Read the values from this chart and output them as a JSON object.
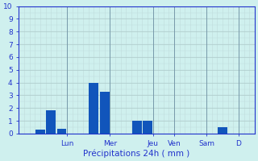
{
  "bar_positions": [
    2,
    3,
    4,
    7,
    8,
    11,
    12,
    19
  ],
  "bar_values": [
    0.3,
    1.8,
    0.4,
    4.0,
    3.3,
    1.0,
    1.0,
    0.5
  ],
  "bar_color": "#1155bb",
  "background_color": "#cff0ee",
  "grid_major_color": "#aac8c8",
  "grid_minor_color": "#c0dcdc",
  "vline_color": "#7799aa",
  "axis_color": "#2233cc",
  "tick_color": "#2233cc",
  "xlabel": "Précipitations 24h ( mm )",
  "xlabel_color": "#2233cc",
  "ylim": [
    0,
    10
  ],
  "yticks": [
    0,
    1,
    2,
    3,
    4,
    5,
    6,
    7,
    8,
    9,
    10
  ],
  "xlim": [
    0,
    22
  ],
  "bar_width": 0.9,
  "day_labels": [
    "Lun",
    "Mer",
    "Jeu",
    "Ven",
    "Sam",
    "D"
  ],
  "day_tick_pos": [
    4.5,
    8.5,
    12.5,
    14.5,
    17.5,
    20.5
  ],
  "vline_positions": [
    4.5,
    8.5,
    12.5,
    14.5,
    17.5,
    20.5
  ],
  "x_minor_step": 0.5
}
